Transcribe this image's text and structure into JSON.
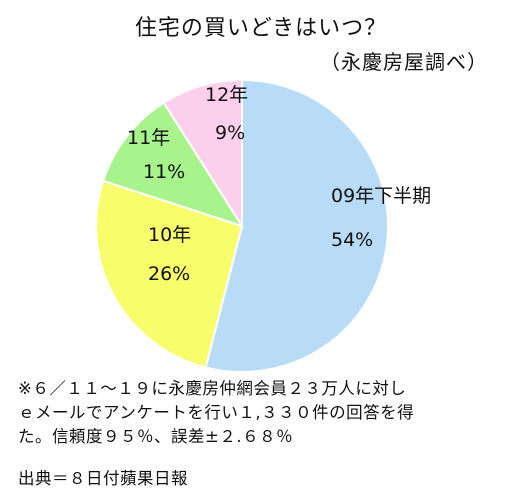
{
  "chart_data": {
    "type": "pie",
    "title": "住宅の買いどきはいつ？",
    "subtitle": "（永慶房屋調べ）",
    "slices": [
      {
        "label": "09年下半期",
        "value": 54,
        "value_label": "54%",
        "color": "#b8dcf8"
      },
      {
        "label": "10年",
        "value": 26,
        "value_label": "26%",
        "color": "#f8fd6c"
      },
      {
        "label": "11年",
        "value": 11,
        "value_label": "11%",
        "color": "#a8f38c"
      },
      {
        "label": "12年",
        "value": 9,
        "value_label": "9%",
        "color": "#fcd0ec"
      }
    ],
    "start": "12 o'clock",
    "direction": "clockwise"
  },
  "note_lines": [
    "※６／１１～１９に永慶房仲網会員２３万人に対し",
    "ｅメールでアンケートを行い１,３３０件の回答を得",
    "た。信頼度９５％、誤差±２.６８％"
  ],
  "source": "出典＝８日付蘋果日報"
}
